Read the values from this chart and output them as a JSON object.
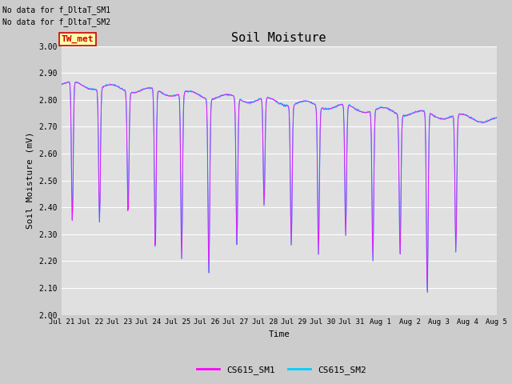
{
  "title": "Soil Moisture",
  "ylabel": "Soil Moisture (mV)",
  "xlabel": "Time",
  "ylim": [
    2.0,
    3.0
  ],
  "yticks": [
    2.0,
    2.1,
    2.2,
    2.3,
    2.4,
    2.5,
    2.6,
    2.7,
    2.8,
    2.9,
    3.0
  ],
  "xtick_labels": [
    "Jul 21",
    "Jul 22",
    "Jul 23",
    "Jul 24",
    "Jul 25",
    "Jul 26",
    "Jul 27",
    "Jul 28",
    "Jul 29",
    "Jul 30",
    "Jul 31",
    "Aug 1",
    "Aug 2",
    "Aug 3",
    "Aug 4",
    "Aug 5"
  ],
  "no_data_text1": "No data for f_DltaT_SM1",
  "no_data_text2": "No data for f_DltaT_SM2",
  "tw_met_label": "TW_met",
  "legend_entries": [
    "CS615_SM1",
    "CS615_SM2"
  ],
  "legend_colors": [
    "#ff00ff",
    "#00ccff"
  ],
  "bg_color": "#cccccc",
  "plot_bg_color": "#e0e0e0",
  "grid_color": "#ffffff",
  "sm1_color": "#ff00ff",
  "sm2_color": "#00ccff",
  "tw_met_box_color": "#ffffaa",
  "tw_met_text_color": "#cc0000",
  "tw_met_border_color": "#cc0000",
  "n_days": 16,
  "n_points": 768
}
